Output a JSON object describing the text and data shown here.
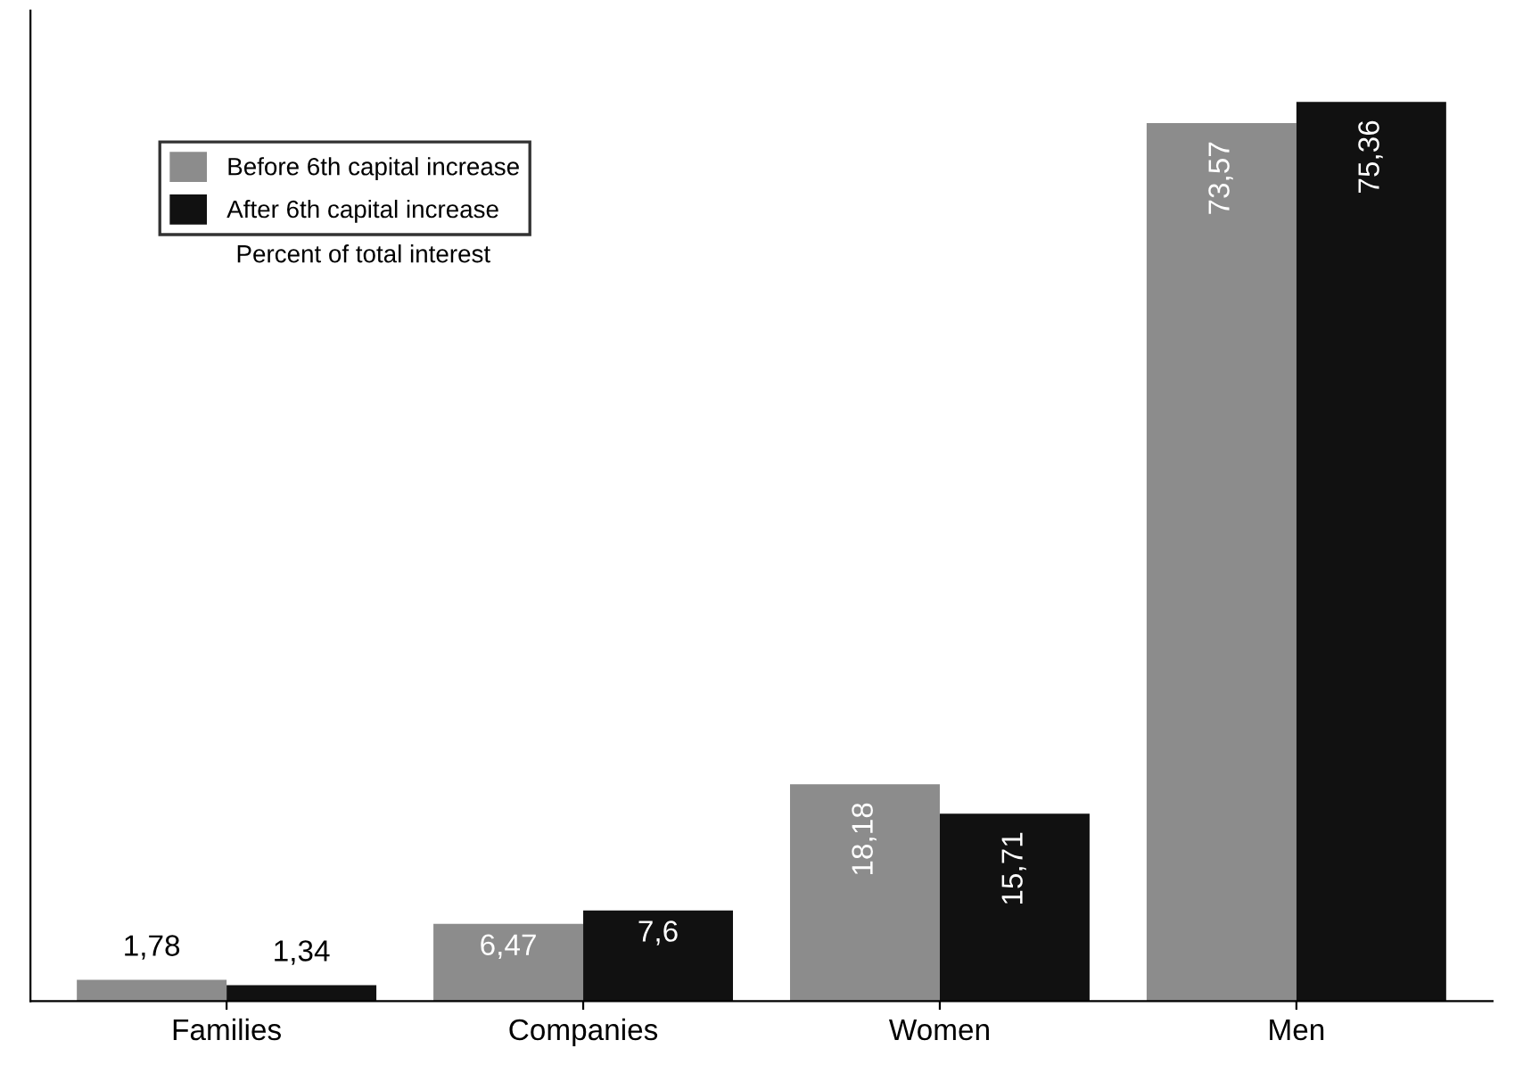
{
  "chart_data": {
    "type": "bar",
    "categories": [
      "Families",
      "Companies",
      "Women",
      "Men"
    ],
    "series": [
      {
        "name": "Before 6th capital increase",
        "color": "#8c8c8c",
        "values": [
          1.78,
          6.47,
          18.18,
          73.57
        ],
        "value_labels": [
          "1,78",
          "6,47",
          "18,18",
          "73,57"
        ]
      },
      {
        "name": "After 6th capital increase",
        "color": "#111111",
        "values": [
          1.34,
          7.6,
          15.71,
          75.36
        ],
        "value_labels": [
          "1,34",
          "7,6",
          "15,71",
          "75,36"
        ]
      }
    ],
    "annotations": [
      "Percent of total interest"
    ],
    "ylim": [
      0,
      83
    ],
    "tick_labels": "x",
    "legend": "top left",
    "grid": false
  }
}
